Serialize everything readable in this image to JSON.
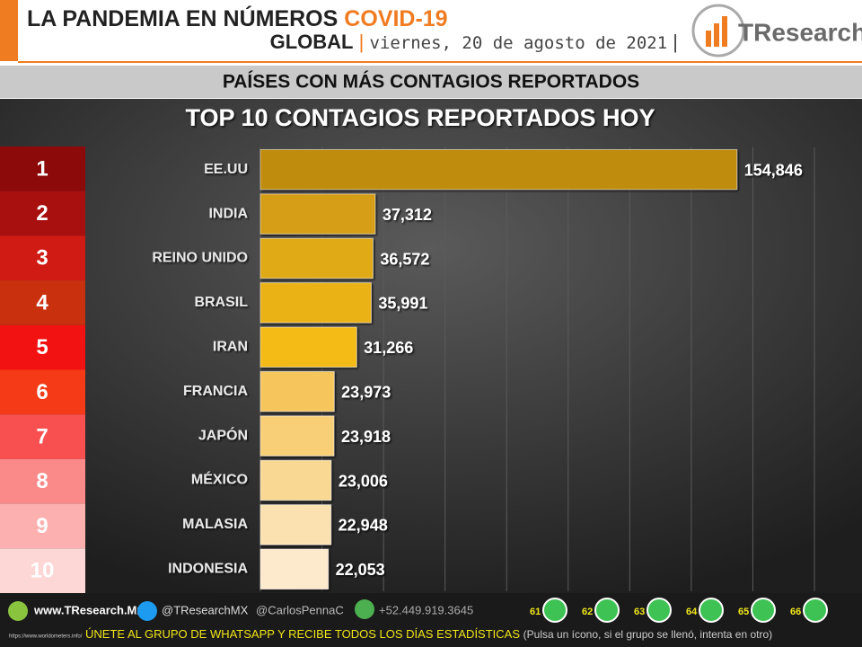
{
  "header": {
    "title": "LA PANDEMIA EN NÚMEROS",
    "title_highlight": "COVID-19",
    "scope": "GLOBAL",
    "date": "viernes, 20 de agosto de 2021",
    "logo": "TResearch",
    "section": "PAÍSES CON MÁS CONTAGIOS REPORTADOS"
  },
  "chart_data": {
    "type": "bar",
    "orientation": "horizontal",
    "title": "TOP 10 CONTAGIOS REPORTADOS HOY",
    "ranks": [
      1,
      2,
      3,
      4,
      5,
      6,
      7,
      8,
      9,
      10
    ],
    "rank_colors": [
      "#8c0a0a",
      "#a81010",
      "#d01a14",
      "#c8300e",
      "#f21212",
      "#f43a16",
      "#f85050",
      "#fa8a8a",
      "#fcb0b0",
      "#fdd6d6"
    ],
    "categories": [
      "EE.UU",
      "INDIA",
      "REINO UNIDO",
      "BRASIL",
      "IRAN",
      "FRANCIA",
      "JAPÓN",
      "MÉXICO",
      "MALASIA",
      "INDONESIA"
    ],
    "values": [
      154846,
      37312,
      36572,
      35991,
      31266,
      23973,
      23918,
      23006,
      22948,
      22053
    ],
    "value_labels": [
      "154,846",
      "37,312",
      "36,572",
      "35,991",
      "31,266",
      "23,973",
      "23,918",
      "23,006",
      "22,948",
      "22,053"
    ],
    "colors": [
      "#c08c10",
      "#d59e12",
      "#e0a912",
      "#ebb214",
      "#f4bb16",
      "#f6c65c",
      "#f8cf76",
      "#f9d894",
      "#fbe1b0",
      "#fde9cc"
    ],
    "xlim": [
      0,
      180000
    ],
    "xticks": [
      0,
      20000,
      40000,
      60000,
      80000,
      100000,
      120000,
      140000,
      160000,
      180000
    ],
    "grid": true
  },
  "footer": {
    "website": "www.TResearch.Mx",
    "twitter": "@TResearchMX",
    "twitter2": "@CarlosPennaC",
    "phone": "+52.449.919.3645",
    "groups": [
      61,
      62,
      63,
      64,
      65,
      66
    ],
    "join": "ÚNETE AL GRUPO DE WHATSAPP Y RECIBE TODOS LOS DÍAS ESTADÍSTICAS",
    "hint": "(Pulsa un ícono, si el grupo se llenó, intenta en otro)",
    "source": "https://www.worldometers.info/"
  }
}
